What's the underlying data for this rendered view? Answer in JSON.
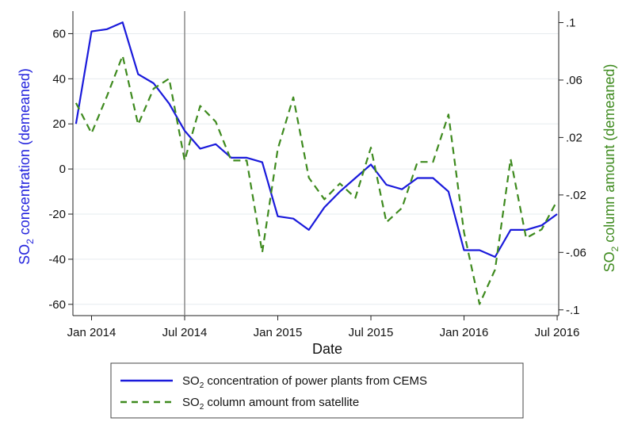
{
  "chart_data": {
    "type": "line",
    "xlabel": "Date",
    "ylabel_left": {
      "main": "SO",
      "sub": "2",
      "rest": " concentration (demeaned)"
    },
    "ylabel_right": {
      "main": "SO",
      "sub": "2",
      "rest": " column amount (demeaned)"
    },
    "x_ticks": [
      "Jan 2014",
      "Jul 2014",
      "Jan 2015",
      "Jul 2015",
      "Jan 2016",
      "Jul 2016"
    ],
    "x_tick_positions": [
      "2014-01",
      "2014-07",
      "2015-01",
      "2015-07",
      "2016-01",
      "2016-07"
    ],
    "xlim": [
      "2013-12",
      "2016-07"
    ],
    "vertical_line_at": "2014-07",
    "y_left_ticks": [
      60,
      40,
      20,
      0,
      -20,
      -40,
      -60
    ],
    "y_left_lim": [
      -65,
      70
    ],
    "y_right_ticks": [
      ".1",
      ".06",
      ".02",
      "-.02",
      "-.06",
      "-.1"
    ],
    "y_right_tick_values": [
      0.1,
      0.06,
      0.02,
      -0.02,
      -0.06,
      -0.1
    ],
    "y_right_lim": [
      -0.104,
      0.108
    ],
    "x": [
      "2013-12",
      "2014-01",
      "2014-02",
      "2014-03",
      "2014-04",
      "2014-05",
      "2014-06",
      "2014-07",
      "2014-08",
      "2014-09",
      "2014-10",
      "2014-11",
      "2014-12",
      "2015-01",
      "2015-02",
      "2015-03",
      "2015-04",
      "2015-05",
      "2015-06",
      "2015-07",
      "2015-08",
      "2015-09",
      "2015-10",
      "2015-11",
      "2015-12",
      "2016-01",
      "2016-02",
      "2016-03",
      "2016-04",
      "2016-05",
      "2016-06",
      "2016-07"
    ],
    "grid": true,
    "legend_placement": "bottom",
    "series": [
      {
        "name": {
          "main": "SO",
          "sub": "2",
          "rest": " concentration of power plants from CEMS"
        },
        "axis": "left",
        "color": "#1a1adb",
        "style": "solid",
        "values": [
          20,
          61,
          62,
          65,
          42,
          38,
          29,
          17,
          9,
          11,
          5,
          5,
          3,
          -21,
          -22,
          -27,
          -17,
          -10,
          -4,
          2,
          -7,
          -9,
          -4,
          -4,
          -10,
          -36,
          -36,
          -39,
          -27,
          -27,
          -25,
          -20
        ]
      },
      {
        "name": {
          "main": "SO",
          "sub": "2",
          "rest": " column amount from satellite"
        },
        "axis": "right",
        "color": "#3e8a1e",
        "style": "dashed",
        "values": [
          0.044,
          0.023,
          0.049,
          0.077,
          0.029,
          0.054,
          0.061,
          0.004,
          0.042,
          0.031,
          0.004,
          0.004,
          -0.06,
          0.012,
          0.048,
          -0.008,
          -0.023,
          -0.012,
          -0.022,
          0.013,
          -0.039,
          -0.029,
          0.003,
          0.003,
          0.036,
          -0.046,
          -0.096,
          -0.072,
          0.005,
          -0.05,
          -0.044,
          -0.024
        ]
      }
    ]
  }
}
